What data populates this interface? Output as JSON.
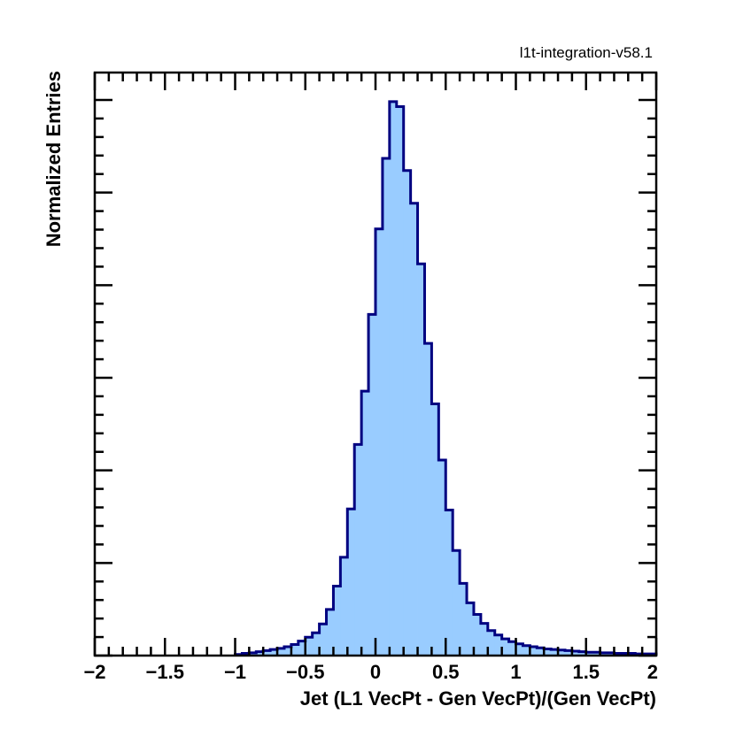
{
  "version_label": "l1t-integration-v58.1",
  "chart_data": {
    "type": "bar",
    "histogram": true,
    "title": "",
    "xlabel": "Jet (L1 VecPt - Gen VecPt)/(Gen VecPt)",
    "ylabel": "Normalized Entries",
    "xlim": [
      -2,
      2
    ],
    "ylim": [
      0,
      1.0
    ],
    "bin_width": 0.05,
    "x_ticks": [
      -2,
      -1.5,
      -1,
      -0.5,
      0,
      0.5,
      1,
      1.5,
      2
    ],
    "x_tick_labels": [
      "−2",
      "−1.5",
      "−1",
      "−0.5",
      "0",
      "0.5",
      "1",
      "1.5",
      "2"
    ],
    "y_tick_labels_shown": false,
    "grid": false,
    "fill_color": "#99ccff",
    "line_color": "#000080",
    "series": [
      {
        "bin_low_edges": [
          -1.0,
          -0.95,
          -0.9,
          -0.85,
          -0.8,
          -0.75,
          -0.7,
          -0.65,
          -0.6,
          -0.55,
          -0.5,
          -0.45,
          -0.4,
          -0.35,
          -0.3,
          -0.25,
          -0.2,
          -0.15,
          -0.1,
          -0.05,
          0.0,
          0.05,
          0.1,
          0.15,
          0.2,
          0.25,
          0.3,
          0.35,
          0.4,
          0.45,
          0.5,
          0.55,
          0.6,
          0.65,
          0.7,
          0.75,
          0.8,
          0.85,
          0.9,
          0.95,
          1.0,
          1.05,
          1.1,
          1.15,
          1.2,
          1.25,
          1.3,
          1.35,
          1.4,
          1.45,
          1.5,
          1.55,
          1.6,
          1.65,
          1.7,
          1.75,
          1.8,
          1.85,
          1.9,
          1.95
        ],
        "values": [
          0.002,
          0.004,
          0.005,
          0.007,
          0.009,
          0.011,
          0.013,
          0.016,
          0.02,
          0.026,
          0.033,
          0.041,
          0.057,
          0.083,
          0.125,
          0.177,
          0.264,
          0.38,
          0.476,
          0.614,
          0.768,
          0.895,
          0.997,
          0.988,
          0.873,
          0.814,
          0.705,
          0.562,
          0.453,
          0.352,
          0.262,
          0.189,
          0.13,
          0.095,
          0.074,
          0.058,
          0.045,
          0.037,
          0.03,
          0.025,
          0.021,
          0.018,
          0.016,
          0.014,
          0.012,
          0.011,
          0.01,
          0.009,
          0.008,
          0.007,
          0.006,
          0.006,
          0.005,
          0.005,
          0.004,
          0.004,
          0.004,
          0.003,
          0.003,
          0.003
        ]
      }
    ]
  }
}
